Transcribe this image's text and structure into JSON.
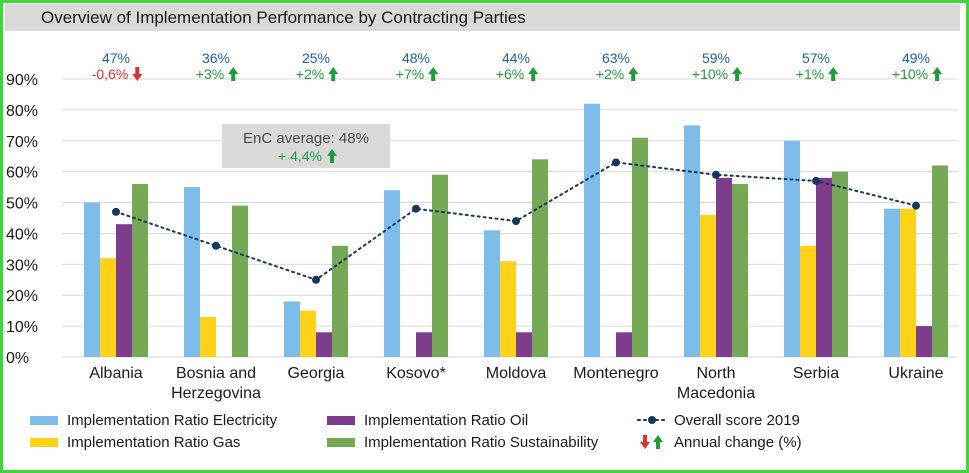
{
  "chart_data": {
    "type": "bar",
    "title": "Overview of Implementation Performance by Contracting Parties",
    "categories": [
      "Albania",
      "Bosnia and Herzegovina",
      "Georgia",
      "Kosovo*",
      "Moldova",
      "Montenegro",
      "North Macedonia",
      "Serbia",
      "Ukraine"
    ],
    "category_lines": [
      [
        "Albania"
      ],
      [
        "Bosnia and",
        "Herzegovina"
      ],
      [
        "Georgia"
      ],
      [
        "Kosovo*"
      ],
      [
        "Moldova"
      ],
      [
        "Montenegro"
      ],
      [
        "North",
        "Macedonia"
      ],
      [
        "Serbia"
      ],
      [
        "Ukraine"
      ]
    ],
    "ylim": [
      0,
      90
    ],
    "yticks": [
      0,
      10,
      20,
      30,
      40,
      50,
      60,
      70,
      80,
      90
    ],
    "ytick_labels": [
      "0%",
      "10%",
      "20%",
      "30%",
      "40%",
      "50%",
      "60%",
      "70%",
      "80%",
      "90%"
    ],
    "grid": true,
    "series": [
      {
        "name": "Implementation Ratio Electricity",
        "color": "#7ebde7",
        "values": [
          50,
          55,
          18,
          54,
          41,
          82,
          75,
          70,
          48
        ]
      },
      {
        "name": "Implementation Ratio Gas",
        "color": "#ffd21a",
        "values": [
          32,
          13,
          15,
          null,
          31,
          null,
          46,
          36,
          48
        ]
      },
      {
        "name": "Implementation Ratio Oil",
        "color": "#7d3c8c",
        "values": [
          43,
          null,
          8,
          8,
          8,
          8,
          58,
          58,
          10
        ]
      },
      {
        "name": "Implementation Ratio Sustainability",
        "color": "#76a955",
        "values": [
          56,
          49,
          36,
          59,
          64,
          71,
          56,
          60,
          62
        ]
      }
    ],
    "line_series": {
      "name": "Overall score 2019",
      "color": "#17375e",
      "values": [
        47,
        36,
        25,
        48,
        44,
        63,
        59,
        57,
        49
      ]
    },
    "score_labels": [
      "47%",
      "36%",
      "25%",
      "48%",
      "44%",
      "63%",
      "59%",
      "57%",
      "49%"
    ],
    "annual_change": [
      {
        "label": "-0,6%",
        "direction": "down"
      },
      {
        "label": "+3%",
        "direction": "up"
      },
      {
        "label": "+2%",
        "direction": "up"
      },
      {
        "label": "+7%",
        "direction": "up"
      },
      {
        "label": "+6%",
        "direction": "up"
      },
      {
        "label": "+2%",
        "direction": "up"
      },
      {
        "label": "+10%",
        "direction": "up"
      },
      {
        "label": "+1%",
        "direction": "up"
      },
      {
        "label": "+10%",
        "direction": "up"
      }
    ],
    "annotation": {
      "line1": "EnC average: 48%",
      "line2": "+ 4,4%",
      "direction": "up"
    },
    "legend": {
      "placement": "bottom",
      "items": [
        {
          "label": "Implementation Ratio Electricity",
          "kind": "bar",
          "color": "#7ebde7"
        },
        {
          "label": "Implementation Ratio Oil",
          "kind": "bar",
          "color": "#7d3c8c"
        },
        {
          "label": "Overall score 2019",
          "kind": "line",
          "color": "#17375e"
        },
        {
          "label": "Implementation Ratio Gas",
          "kind": "bar",
          "color": "#ffd21a"
        },
        {
          "label": "Implementation Ratio Sustainability",
          "kind": "bar",
          "color": "#76a955"
        },
        {
          "label": "Annual change (%)",
          "kind": "arrows"
        }
      ]
    },
    "colors": {
      "score": "#1f5fa8",
      "up": "#1e9b3a",
      "down": "#e0312a",
      "grid": "#d9d9d9",
      "annotation_bg": "#d9d9d9"
    }
  }
}
